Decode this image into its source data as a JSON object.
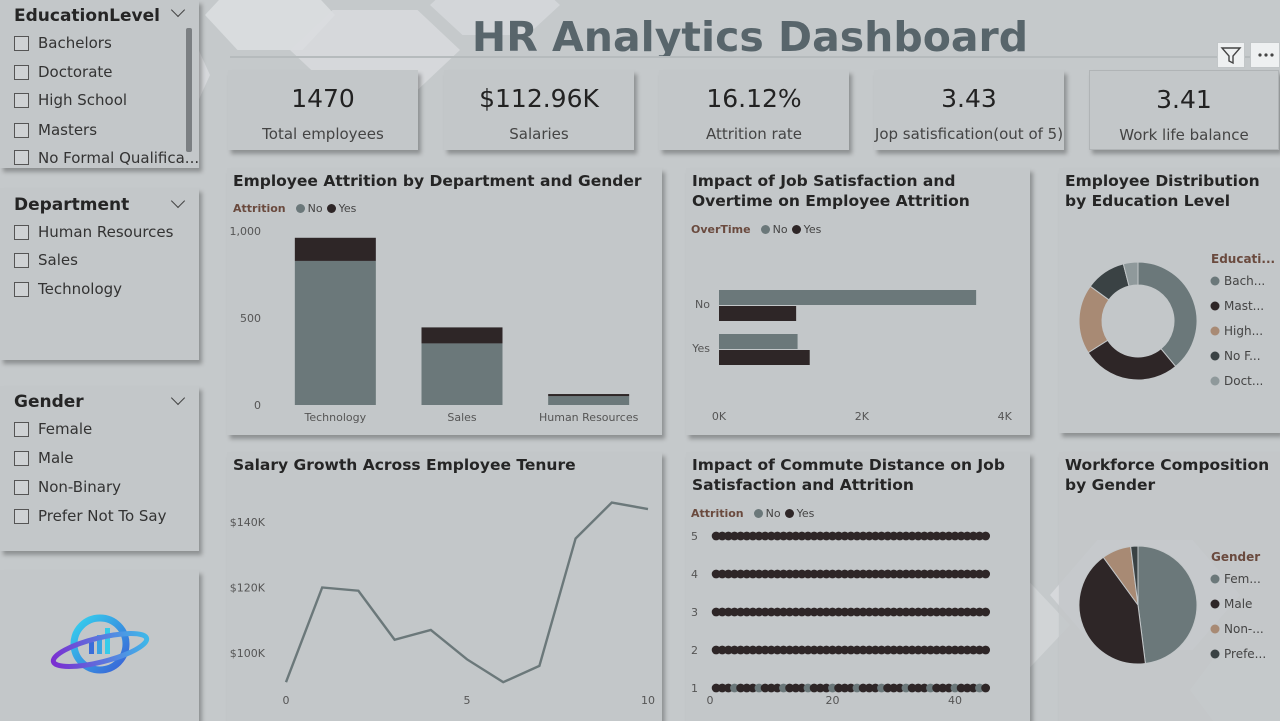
{
  "title": "HR Analytics Dashboard",
  "colors": {
    "no": "#6b787a",
    "yes": "#2e2627",
    "tan": "#a88a74",
    "light": "#8f999b",
    "bg": "#c5c9cb"
  },
  "slicers": {
    "education": {
      "title": "EducationLevel",
      "options": [
        "Bachelors",
        "Doctorate",
        "High School",
        "Masters",
        "No Formal Qualifica..."
      ]
    },
    "department": {
      "title": "Department",
      "options": [
        "Human Resources",
        "Sales",
        "Technology"
      ]
    },
    "gender": {
      "title": "Gender",
      "options": [
        "Female",
        "Male",
        "Non-Binary",
        "Prefer Not To Say"
      ]
    }
  },
  "kpis": [
    {
      "value": "1470",
      "label": "Total employees"
    },
    {
      "value": "$112.96K",
      "label": "Salaries"
    },
    {
      "value": "16.12%",
      "label": "Attrition rate"
    },
    {
      "value": "3.43",
      "label": "Jop satisfication(out of 5)"
    },
    {
      "value": "3.41",
      "label": "Work life balance"
    }
  ],
  "icons": {
    "filter": "filter-icon",
    "more": "more-options-icon",
    "logo": "hr-logo-icon"
  },
  "legend_labels": {
    "attrition": "Attrition",
    "overtime": "OverTime",
    "no": "No",
    "yes": "Yes"
  },
  "chart_data": [
    {
      "type": "bar",
      "title": "Employee Attrition by Department and Gender",
      "legend_title": "Attrition",
      "categories": [
        "Technology",
        "Sales",
        "Human Resources"
      ],
      "series": [
        {
          "name": "No",
          "values": [
            828,
            354,
            51
          ]
        },
        {
          "name": "Yes",
          "values": [
            133,
            92,
            12
          ]
        }
      ],
      "stacked": true,
      "ylim": [
        0,
        1000
      ],
      "yticks": [
        "0",
        "500",
        "1,000"
      ]
    },
    {
      "type": "bar",
      "orientation": "horizontal",
      "title": "Impact of Job Satisfaction and Overtime on Employee Attrition",
      "legend_title": "OverTime",
      "categories": [
        "No",
        "Yes"
      ],
      "series": [
        {
          "name": "No",
          "values": [
            3600,
            1100
          ]
        },
        {
          "name": "Yes",
          "values": [
            1080,
            1270
          ]
        }
      ],
      "xlim": [
        0,
        4200
      ],
      "xticks": [
        "0K",
        "2K",
        "4K"
      ]
    },
    {
      "type": "pie",
      "donut": true,
      "title": "Employee Distribution by Education Level",
      "legend_title": "Educati...",
      "slices": [
        {
          "label": "Bach...",
          "value": 39
        },
        {
          "label": "Mast...",
          "value": 27
        },
        {
          "label": "High...",
          "value": 19
        },
        {
          "label": "No F...",
          "value": 11
        },
        {
          "label": "Doct...",
          "value": 4
        }
      ]
    },
    {
      "type": "line",
      "title": "Salary Growth Across Employee Tenure",
      "x": [
        0,
        1,
        2,
        3,
        4,
        5,
        6,
        7,
        8,
        9,
        10
      ],
      "series": [
        {
          "values": [
            91000,
            120000,
            119000,
            104000,
            107000,
            98000,
            91000,
            96000,
            135000,
            146000,
            144000
          ]
        }
      ],
      "xticks": [
        "0",
        "5",
        "10"
      ],
      "yticks": [
        "$100K",
        "$120K",
        "$140K"
      ],
      "ylim": [
        88000,
        148000
      ]
    },
    {
      "type": "scatter",
      "title": "Impact of Commute Distance on Job Satisfaction and Attrition",
      "legend_title": "Attrition",
      "x_range": [
        1,
        45
      ],
      "y_values": [
        1,
        2,
        3,
        4,
        5
      ],
      "xticks": [
        "0",
        "20",
        "40"
      ],
      "yticks": [
        "1",
        "2",
        "3",
        "4",
        "5"
      ],
      "xlim": [
        0,
        48
      ]
    },
    {
      "type": "pie",
      "title": "Workforce Composition by Gender",
      "legend_title": "Gender",
      "slices": [
        {
          "label": "Fem...",
          "value": 48
        },
        {
          "label": "Male",
          "value": 42
        },
        {
          "label": "Non-...",
          "value": 8
        },
        {
          "label": "Prefe...",
          "value": 2
        }
      ]
    }
  ]
}
